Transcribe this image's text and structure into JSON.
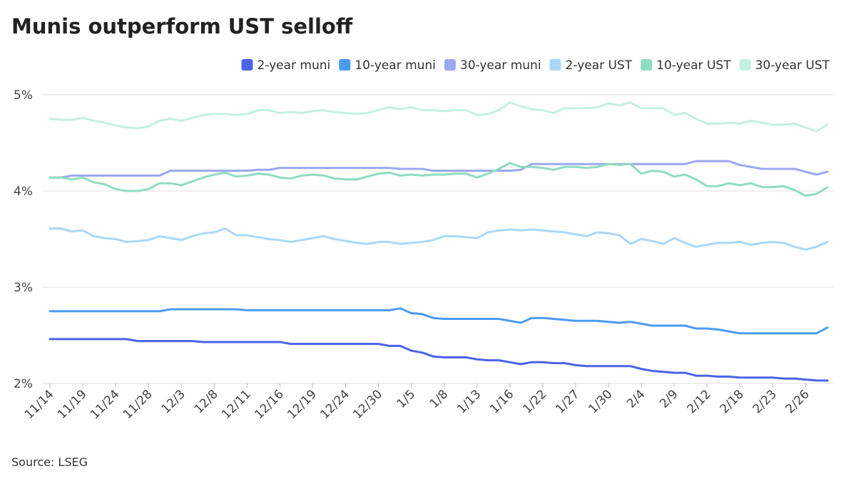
{
  "chart_data": {
    "type": "line",
    "title": "Munis outperform UST selloff",
    "source": "Source: LSEG",
    "categories": [
      "11/14",
      null,
      null,
      "11/19",
      null,
      null,
      "11/24",
      null,
      null,
      "11/28",
      null,
      null,
      "12/3",
      null,
      null,
      "12/8",
      null,
      null,
      "12/11",
      null,
      null,
      "12/16",
      null,
      null,
      "12/19",
      null,
      null,
      "12/24",
      null,
      null,
      "12/30",
      null,
      null,
      "1/5",
      null,
      null,
      "1/8",
      null,
      null,
      "1/13",
      null,
      null,
      "1/16",
      null,
      null,
      "1/22",
      null,
      null,
      "1/27",
      null,
      null,
      "1/30",
      null,
      null,
      "2/4",
      null,
      null,
      "2/9",
      null,
      null,
      "2/12",
      null,
      null,
      "2/18",
      null,
      null,
      "2/23",
      null,
      null,
      "2/26",
      null,
      null
    ],
    "ylim": [
      2,
      5
    ],
    "yticks": [
      {
        "value": 2,
        "label": "2%"
      },
      {
        "value": 3,
        "label": "3%"
      },
      {
        "value": 4,
        "label": "4%"
      },
      {
        "value": 5,
        "label": "5%"
      }
    ],
    "grid": true,
    "legend": "top-right",
    "series": [
      {
        "name": "2-year muni",
        "color": "#4a63e8",
        "values": [
          2.46,
          2.46,
          2.46,
          2.46,
          2.46,
          2.46,
          2.46,
          2.46,
          2.44,
          2.44,
          2.44,
          2.44,
          2.44,
          2.44,
          2.43,
          2.43,
          2.43,
          2.43,
          2.43,
          2.43,
          2.43,
          2.43,
          2.41,
          2.41,
          2.41,
          2.41,
          2.41,
          2.41,
          2.41,
          2.41,
          2.41,
          2.39,
          2.39,
          2.34,
          2.32,
          2.28,
          2.27,
          2.27,
          2.27,
          2.25,
          2.24,
          2.24,
          2.22,
          2.2,
          2.22,
          2.22,
          2.21,
          2.21,
          2.19,
          2.18,
          2.18,
          2.18,
          2.18,
          2.18,
          2.15,
          2.13,
          2.12,
          2.11,
          2.11,
          2.08,
          2.08,
          2.07,
          2.07,
          2.06,
          2.06,
          2.06,
          2.06,
          2.05,
          2.05,
          2.04,
          2.03,
          2.03
        ]
      },
      {
        "name": "10-year muni",
        "color": "#4a9bf0",
        "values": [
          2.75,
          2.75,
          2.75,
          2.75,
          2.75,
          2.75,
          2.75,
          2.75,
          2.75,
          2.75,
          2.75,
          2.77,
          2.77,
          2.77,
          2.77,
          2.77,
          2.77,
          2.77,
          2.76,
          2.76,
          2.76,
          2.76,
          2.76,
          2.76,
          2.76,
          2.76,
          2.76,
          2.76,
          2.76,
          2.76,
          2.76,
          2.76,
          2.78,
          2.73,
          2.72,
          2.68,
          2.67,
          2.67,
          2.67,
          2.67,
          2.67,
          2.67,
          2.65,
          2.63,
          2.68,
          2.68,
          2.67,
          2.66,
          2.65,
          2.65,
          2.65,
          2.64,
          2.63,
          2.64,
          2.62,
          2.6,
          2.6,
          2.6,
          2.6,
          2.57,
          2.57,
          2.56,
          2.54,
          2.52,
          2.52,
          2.52,
          2.52,
          2.52,
          2.52,
          2.52,
          2.52,
          2.58
        ]
      },
      {
        "name": "30-year muni",
        "color": "#9aa8f0",
        "values": [
          4.14,
          4.14,
          4.16,
          4.16,
          4.16,
          4.16,
          4.16,
          4.16,
          4.16,
          4.16,
          4.16,
          4.21,
          4.21,
          4.21,
          4.21,
          4.21,
          4.21,
          4.21,
          4.21,
          4.22,
          4.22,
          4.24,
          4.24,
          4.24,
          4.24,
          4.24,
          4.24,
          4.24,
          4.24,
          4.24,
          4.24,
          4.24,
          4.23,
          4.23,
          4.23,
          4.21,
          4.21,
          4.21,
          4.21,
          4.21,
          4.21,
          4.21,
          4.21,
          4.22,
          4.28,
          4.28,
          4.28,
          4.28,
          4.28,
          4.28,
          4.28,
          4.28,
          4.28,
          4.28,
          4.28,
          4.28,
          4.28,
          4.28,
          4.28,
          4.31,
          4.31,
          4.31,
          4.31,
          4.27,
          4.25,
          4.23,
          4.23,
          4.23,
          4.23,
          4.2,
          4.17,
          4.2
        ]
      },
      {
        "name": "2-year UST",
        "color": "#a8d8f8",
        "values": [
          3.61,
          3.61,
          3.58,
          3.59,
          3.53,
          3.51,
          3.5,
          3.47,
          3.48,
          3.49,
          3.53,
          3.51,
          3.49,
          3.53,
          3.56,
          3.57,
          3.61,
          3.54,
          3.54,
          3.52,
          3.5,
          3.49,
          3.47,
          3.49,
          3.51,
          3.53,
          3.5,
          3.48,
          3.46,
          3.45,
          3.47,
          3.47,
          3.45,
          3.46,
          3.47,
          3.49,
          3.53,
          3.53,
          3.52,
          3.51,
          3.57,
          3.59,
          3.6,
          3.59,
          3.6,
          3.59,
          3.58,
          3.57,
          3.55,
          3.53,
          3.57,
          3.56,
          3.54,
          3.45,
          3.5,
          3.48,
          3.45,
          3.51,
          3.46,
          3.42,
          3.44,
          3.46,
          3.46,
          3.47,
          3.44,
          3.46,
          3.47,
          3.46,
          3.42,
          3.39,
          3.42,
          3.47
        ]
      },
      {
        "name": "10-year UST",
        "color": "#8fdcc0",
        "values": [
          4.14,
          4.14,
          4.12,
          4.14,
          4.09,
          4.07,
          4.02,
          4.0,
          4.0,
          4.02,
          4.08,
          4.08,
          4.06,
          4.1,
          4.14,
          4.17,
          4.19,
          4.15,
          4.16,
          4.18,
          4.17,
          4.14,
          4.13,
          4.16,
          4.17,
          4.16,
          4.13,
          4.12,
          4.12,
          4.15,
          4.18,
          4.19,
          4.16,
          4.17,
          4.16,
          4.17,
          4.17,
          4.18,
          4.18,
          4.14,
          4.18,
          4.23,
          4.29,
          4.25,
          4.25,
          4.24,
          4.22,
          4.25,
          4.25,
          4.24,
          4.25,
          4.28,
          4.27,
          4.28,
          4.18,
          4.21,
          4.2,
          4.15,
          4.17,
          4.12,
          4.05,
          4.05,
          4.08,
          4.06,
          4.08,
          4.04,
          4.04,
          4.05,
          4.01,
          3.95,
          3.97,
          4.04
        ]
      },
      {
        "name": "30-year UST",
        "color": "#c4f0e0",
        "values": [
          4.75,
          4.74,
          4.74,
          4.76,
          4.73,
          4.71,
          4.68,
          4.66,
          4.65,
          4.67,
          4.73,
          4.75,
          4.73,
          4.76,
          4.79,
          4.8,
          4.8,
          4.79,
          4.8,
          4.84,
          4.84,
          4.81,
          4.82,
          4.81,
          4.83,
          4.84,
          4.82,
          4.81,
          4.8,
          4.81,
          4.84,
          4.87,
          4.85,
          4.87,
          4.84,
          4.84,
          4.83,
          4.84,
          4.84,
          4.79,
          4.8,
          4.84,
          4.92,
          4.88,
          4.85,
          4.84,
          4.81,
          4.86,
          4.86,
          4.86,
          4.87,
          4.91,
          4.89,
          4.92,
          4.86,
          4.86,
          4.86,
          4.79,
          4.81,
          4.75,
          4.7,
          4.7,
          4.71,
          4.7,
          4.73,
          4.71,
          4.69,
          4.69,
          4.7,
          4.66,
          4.62,
          4.69
        ]
      }
    ]
  }
}
